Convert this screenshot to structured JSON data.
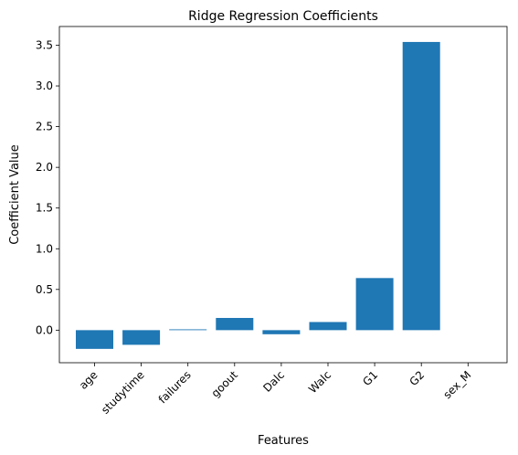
{
  "chart_data": {
    "type": "bar",
    "title": "Ridge Regression Coefficients",
    "xlabel": "Features",
    "ylabel": "Coefficient Value",
    "categories": [
      "age",
      "studytime",
      "failures",
      "goout",
      "Dalc",
      "Walc",
      "G1",
      "G2",
      "sex_M"
    ],
    "values": [
      -0.23,
      -0.18,
      0.01,
      0.15,
      -0.05,
      0.1,
      0.64,
      3.54,
      0.0
    ],
    "ylim": [
      -0.4,
      3.73
    ],
    "yticks": [
      0.0,
      0.5,
      1.0,
      1.5,
      2.0,
      2.5,
      3.0,
      3.5
    ],
    "ytick_labels": [
      "0.0",
      "0.5",
      "1.0",
      "1.5",
      "2.0",
      "2.5",
      "3.0",
      "3.5"
    ],
    "bar_color": "#1f77b4",
    "grid": false,
    "legend": "none"
  }
}
